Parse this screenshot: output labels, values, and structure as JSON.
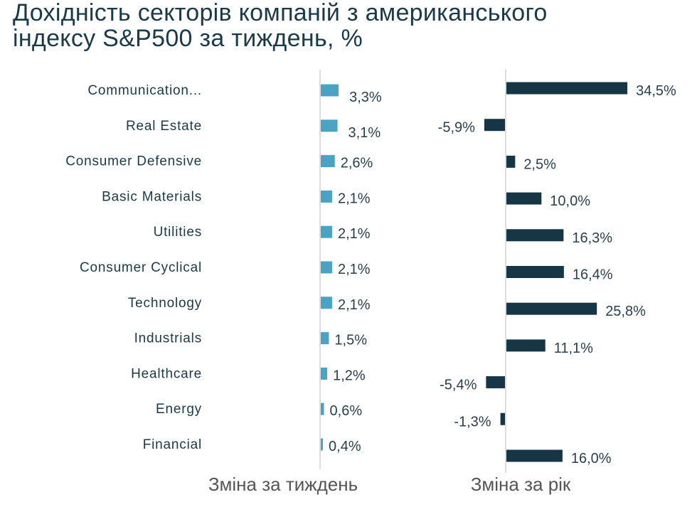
{
  "chart_data": {
    "type": "bar",
    "title": "Дохідність секторів компаній з американського індексу S&P500 за тиждень, %",
    "categories": [
      "Communication...",
      "Real Estate",
      "Consumer Defensive",
      "Basic Materials",
      "Utilities",
      "Consumer Cyclical",
      "Technology",
      "Industrials",
      "Healthcare",
      "Energy",
      "Financial"
    ],
    "series": [
      {
        "name": "Зміна за тиждень",
        "color": "#4ba3c3",
        "values": [
          3.3,
          3.1,
          2.6,
          2.1,
          2.1,
          2.1,
          2.1,
          1.5,
          1.2,
          0.6,
          0.4
        ],
        "labels": [
          "3,3%",
          "3,1%",
          "2,6%",
          "2,1%",
          "2,1%",
          "2,1%",
          "2,1%",
          "1,5%",
          "1,2%",
          "0,6%",
          "0,4%"
        ]
      },
      {
        "name": "Зміна за рік",
        "color": "#163545",
        "values": [
          34.5,
          -5.9,
          2.5,
          10.0,
          16.3,
          16.4,
          25.8,
          11.1,
          -5.4,
          -1.3,
          16.0
        ],
        "labels": [
          "34,5%",
          "-5,9%",
          "2,5%",
          "10,0%",
          "16,3%",
          "16,4%",
          "25,8%",
          "11,1%",
          "-5,4%",
          "-1,3%",
          "16,0%"
        ]
      }
    ],
    "title_lines": [
      "Дохідність секторів компаній з американського",
      "індексу S&P500 за тиждень, %"
    ]
  }
}
